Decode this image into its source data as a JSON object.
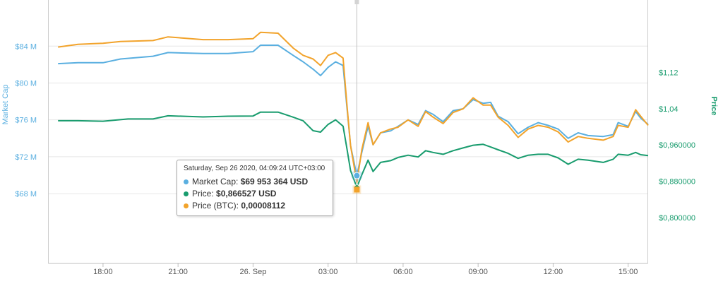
{
  "colors": {
    "market_cap": "#5aafe0",
    "price": "#199c6e",
    "price_btc": "#f2a32b",
    "grid": "#e6e6e6",
    "axis_label": "#666666"
  },
  "chart_data": {
    "type": "line",
    "ylabel_left": "Market Cap",
    "ylabel_right": "Price",
    "x_ticks": [
      "18:00",
      "21:00",
      "26. Sep",
      "03:00",
      "06:00",
      "09:00",
      "12:00",
      "15:00"
    ],
    "left_axis": {
      "ticks": [
        "$68 M",
        "$72 M",
        "$76 M",
        "$80 M",
        "$84 M"
      ],
      "values": [
        68,
        72,
        76,
        80,
        84
      ],
      "ylim": [
        60.5,
        89
      ]
    },
    "right_axis": {
      "ticks": [
        "$0,800000",
        "$0,880000",
        "$0,960000",
        "$1,04",
        "$1,12"
      ],
      "values": [
        0.8,
        0.88,
        0.96,
        1.04,
        1.12
      ],
      "ylim": [
        0.7,
        1.28
      ]
    },
    "grid": true,
    "x_range_hours": [
      -8.2,
      15.8
    ],
    "series": [
      {
        "name": "Market Cap",
        "axis": "left",
        "points": [
          [
            -7.8,
            82.1
          ],
          [
            -7,
            82.2
          ],
          [
            -6,
            82.2
          ],
          [
            -5.3,
            82.6
          ],
          [
            -4,
            82.9
          ],
          [
            -3.4,
            83.3
          ],
          [
            -2,
            83.2
          ],
          [
            -1,
            83.2
          ],
          [
            0,
            83.4
          ],
          [
            0.3,
            84.1
          ],
          [
            1,
            84.1
          ],
          [
            1.6,
            83.0
          ],
          [
            2,
            82.3
          ],
          [
            2.4,
            81.5
          ],
          [
            2.7,
            80.8
          ],
          [
            3.0,
            81.7
          ],
          [
            3.3,
            82.3
          ],
          [
            3.6,
            81.9
          ],
          [
            3.75,
            77.5
          ],
          [
            3.9,
            73.2
          ],
          [
            4.15,
            69.95
          ],
          [
            4.35,
            72.5
          ],
          [
            4.6,
            75.3
          ],
          [
            4.8,
            73.3
          ],
          [
            5.1,
            74.6
          ],
          [
            5.5,
            74.8
          ],
          [
            5.8,
            75.3
          ],
          [
            6.2,
            76.0
          ],
          [
            6.6,
            75.5
          ],
          [
            6.9,
            77.0
          ],
          [
            7.2,
            76.6
          ],
          [
            7.6,
            75.8
          ],
          [
            8.0,
            77.0
          ],
          [
            8.4,
            77.2
          ],
          [
            8.8,
            78.2
          ],
          [
            9.2,
            77.8
          ],
          [
            9.5,
            77.9
          ],
          [
            9.8,
            76.4
          ],
          [
            10.2,
            75.8
          ],
          [
            10.6,
            74.5
          ],
          [
            11.0,
            75.2
          ],
          [
            11.4,
            75.7
          ],
          [
            11.8,
            75.4
          ],
          [
            12.2,
            75.0
          ],
          [
            12.6,
            74.0
          ],
          [
            13.0,
            74.6
          ],
          [
            13.4,
            74.3
          ],
          [
            14.0,
            74.2
          ],
          [
            14.4,
            74.4
          ],
          [
            14.6,
            75.7
          ],
          [
            15.0,
            75.3
          ],
          [
            15.3,
            76.9
          ],
          [
            15.5,
            76.2
          ],
          [
            15.8,
            75.5
          ]
        ]
      },
      {
        "name": "Price",
        "axis": "right",
        "points": [
          [
            -7.8,
            1.0135
          ],
          [
            -7,
            1.0135
          ],
          [
            -6,
            1.0125
          ],
          [
            -5,
            1.0175
          ],
          [
            -4,
            1.0175
          ],
          [
            -3.4,
            1.0245
          ],
          [
            -2,
            1.022
          ],
          [
            -1,
            1.0235
          ],
          [
            0,
            1.024
          ],
          [
            0.3,
            1.0325
          ],
          [
            1,
            1.0325
          ],
          [
            1.6,
            1.0215
          ],
          [
            2,
            1.0135
          ],
          [
            2.4,
            0.9915
          ],
          [
            2.7,
            0.9885
          ],
          [
            3.0,
            1.0055
          ],
          [
            3.3,
            1.0155
          ],
          [
            3.6,
            1.0015
          ],
          [
            3.75,
            0.9535
          ],
          [
            3.9,
            0.9035
          ],
          [
            4.15,
            0.8665
          ],
          [
            4.35,
            0.8945
          ],
          [
            4.6,
            0.9265
          ],
          [
            4.8,
            0.9015
          ],
          [
            5.1,
            0.9215
          ],
          [
            5.5,
            0.9255
          ],
          [
            5.8,
            0.9325
          ],
          [
            6.2,
            0.9375
          ],
          [
            6.6,
            0.9335
          ],
          [
            6.9,
            0.9475
          ],
          [
            7.2,
            0.9435
          ],
          [
            7.6,
            0.9395
          ],
          [
            8.0,
            0.9475
          ],
          [
            8.4,
            0.9535
          ],
          [
            8.8,
            0.9595
          ],
          [
            9.2,
            0.9615
          ],
          [
            9.5,
            0.9555
          ],
          [
            9.8,
            0.9495
          ],
          [
            10.2,
            0.9415
          ],
          [
            10.6,
            0.9305
          ],
          [
            11.0,
            0.9375
          ],
          [
            11.4,
            0.9395
          ],
          [
            11.8,
            0.9395
          ],
          [
            12.2,
            0.9315
          ],
          [
            12.6,
            0.9175
          ],
          [
            13.0,
            0.9285
          ],
          [
            13.4,
            0.9265
          ],
          [
            14.0,
            0.9215
          ],
          [
            14.4,
            0.9285
          ],
          [
            14.6,
            0.9395
          ],
          [
            15.0,
            0.9375
          ],
          [
            15.3,
            0.9435
          ],
          [
            15.5,
            0.9385
          ],
          [
            15.8,
            0.9365
          ]
        ]
      },
      {
        "name": "Price (BTC)",
        "axis": "left",
        "points": [
          [
            -7.8,
            83.9
          ],
          [
            -7,
            84.2
          ],
          [
            -6,
            84.3
          ],
          [
            -5.3,
            84.5
          ],
          [
            -4,
            84.6
          ],
          [
            -3.4,
            85.0
          ],
          [
            -2,
            84.7
          ],
          [
            -1,
            84.7
          ],
          [
            0,
            84.8
          ],
          [
            0.3,
            85.5
          ],
          [
            1,
            85.4
          ],
          [
            1.6,
            83.8
          ],
          [
            2,
            83.0
          ],
          [
            2.4,
            82.6
          ],
          [
            2.7,
            81.9
          ],
          [
            3.0,
            83.0
          ],
          [
            3.3,
            83.3
          ],
          [
            3.6,
            82.7
          ],
          [
            3.75,
            77.8
          ],
          [
            3.9,
            73.2
          ],
          [
            4.15,
            69.2
          ],
          [
            4.35,
            72.8
          ],
          [
            4.6,
            75.7
          ],
          [
            4.8,
            73.3
          ],
          [
            5.1,
            74.6
          ],
          [
            5.5,
            75.0
          ],
          [
            5.8,
            75.2
          ],
          [
            6.2,
            76.0
          ],
          [
            6.6,
            75.3
          ],
          [
            6.9,
            76.9
          ],
          [
            7.2,
            76.3
          ],
          [
            7.6,
            75.6
          ],
          [
            8.0,
            76.8
          ],
          [
            8.4,
            77.2
          ],
          [
            8.8,
            78.4
          ],
          [
            9.2,
            77.6
          ],
          [
            9.5,
            77.6
          ],
          [
            9.8,
            76.3
          ],
          [
            10.2,
            75.4
          ],
          [
            10.6,
            74.1
          ],
          [
            11.0,
            75.0
          ],
          [
            11.4,
            75.4
          ],
          [
            11.8,
            75.2
          ],
          [
            12.2,
            74.7
          ],
          [
            12.6,
            73.6
          ],
          [
            13.0,
            74.2
          ],
          [
            13.4,
            74.0
          ],
          [
            14.0,
            73.8
          ],
          [
            14.4,
            74.2
          ],
          [
            14.6,
            75.4
          ],
          [
            15.0,
            75.2
          ],
          [
            15.3,
            77.1
          ],
          [
            15.5,
            76.4
          ],
          [
            15.8,
            75.4
          ]
        ]
      }
    ],
    "hover": {
      "x_hours": 4.15,
      "market_cap_value": 69.95,
      "price_value": 0.8665,
      "price_btc_value": 69.2
    }
  },
  "tooltip": {
    "date": "Saturday, Sep 26 2020, 04:09:24 UTC+03:00",
    "rows": [
      {
        "label": "Market Cap: ",
        "value": "$69 953 364 USD"
      },
      {
        "label": "Price: ",
        "value": "$0,866527 USD"
      },
      {
        "label": "Price (BTC): ",
        "value": "0,00008112"
      }
    ]
  }
}
